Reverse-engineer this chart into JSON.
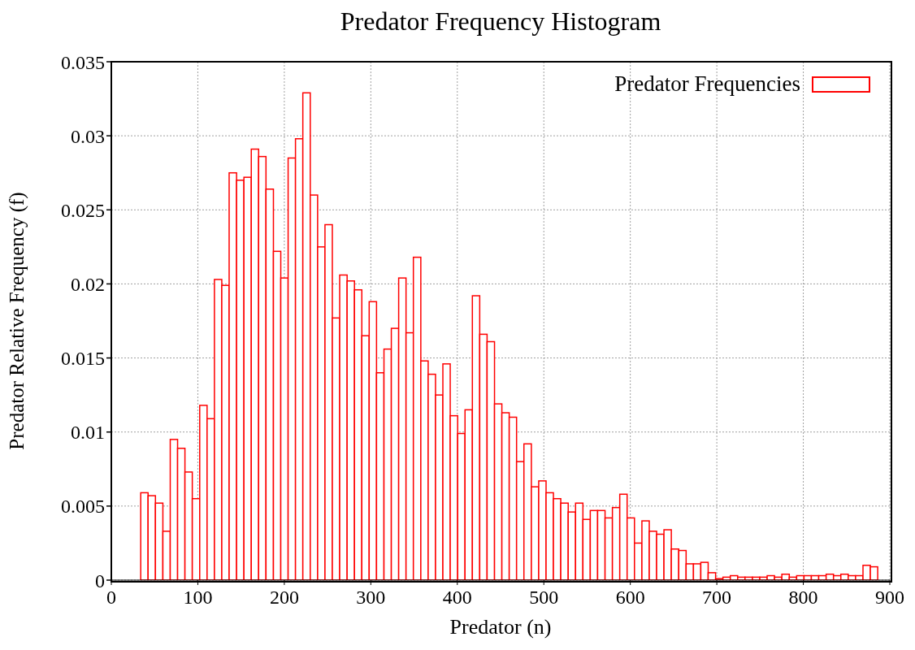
{
  "chart_data": {
    "type": "histogram",
    "title": "Predator Frequency Histogram",
    "xlabel": "Predator (n)",
    "ylabel": "Predator Relative Frequency (f)",
    "bins": [
      34,
      42.5,
      51.0,
      59.6,
      68.1,
      76.6,
      85.1,
      93.6,
      102.2,
      110.7,
      119.2,
      127.7,
      136.2,
      144.8,
      153.3,
      161.8,
      170.3,
      178.8,
      187.4,
      195.9,
      204.4,
      212.9,
      221.4,
      230.0,
      238.5,
      247,
      255.5,
      264.0,
      272.6,
      281.1,
      289.6,
      298.1,
      306.6,
      315.2,
      323.7,
      332.2,
      340.7,
      349.2,
      357.8,
      366.3,
      374.8,
      383.3,
      391.8,
      400.4,
      408.9,
      417.4,
      425.9,
      434.4,
      443.0,
      451.5,
      460,
      468.5,
      477.0,
      485.6,
      494.1,
      502.6,
      511.1,
      519.6,
      528.2,
      536.7,
      545.2,
      553.7,
      562.2,
      570.8,
      579.3,
      587.8,
      596.3,
      604.8,
      613.4,
      621.9,
      630.4,
      638.9,
      647.4,
      656.0,
      664.5,
      673,
      681.5,
      690.0,
      698.6,
      707.1,
      715.6,
      724.1,
      732.6,
      741.2,
      749.7,
      758.2,
      766.7,
      775.2,
      783.8,
      792.3,
      800.8,
      809.3,
      817.8,
      826.4,
      834.9,
      843.4,
      851.9,
      860.4,
      869.0,
      877.5,
      886
    ],
    "series": [
      {
        "name": "Predator Frequencies",
        "color": "#ff0000",
        "values": [
          0.0059,
          0.0057,
          0.0052,
          0.0033,
          0.0095,
          0.0089,
          0.0073,
          0.0055,
          0.0118,
          0.0109,
          0.0203,
          0.0199,
          0.0275,
          0.027,
          0.0272,
          0.0291,
          0.0286,
          0.0264,
          0.0222,
          0.0204,
          0.0285,
          0.0298,
          0.0329,
          0.026,
          0.0225,
          0.024,
          0.0177,
          0.0206,
          0.0202,
          0.0196,
          0.0165,
          0.0188,
          0.014,
          0.0156,
          0.017,
          0.0204,
          0.0167,
          0.0218,
          0.0148,
          0.0139,
          0.0125,
          0.0146,
          0.0111,
          0.0099,
          0.0115,
          0.0192,
          0.0166,
          0.0161,
          0.0119,
          0.0113,
          0.011,
          0.008,
          0.0092,
          0.0063,
          0.0067,
          0.0059,
          0.0055,
          0.0052,
          0.0046,
          0.0052,
          0.0041,
          0.0047,
          0.0047,
          0.0042,
          0.0049,
          0.0058,
          0.0042,
          0.0025,
          0.004,
          0.0033,
          0.0031,
          0.0034,
          0.0021,
          0.002,
          0.0011,
          0.0011,
          0.0012,
          0.0005,
          0.0001,
          0.0002,
          0.0003,
          0.0002,
          0.0002,
          0.0002,
          0.0002,
          0.0003,
          0.0002,
          0.0004,
          0.0002,
          0.0003,
          0.0003,
          0.0003,
          0.0003,
          0.0004,
          0.0003,
          0.0004,
          0.0003,
          0.0003,
          0.001,
          0.0009
        ]
      }
    ],
    "xlim": [
      0,
      900
    ],
    "xticks": [
      0,
      100,
      200,
      300,
      400,
      500,
      600,
      700,
      800,
      900
    ],
    "ylim": [
      0,
      0.035
    ],
    "yticks": [
      0,
      0.005,
      0.01,
      0.015,
      0.02,
      0.025,
      0.03,
      0.035
    ],
    "grid": true,
    "legend": "top right"
  }
}
